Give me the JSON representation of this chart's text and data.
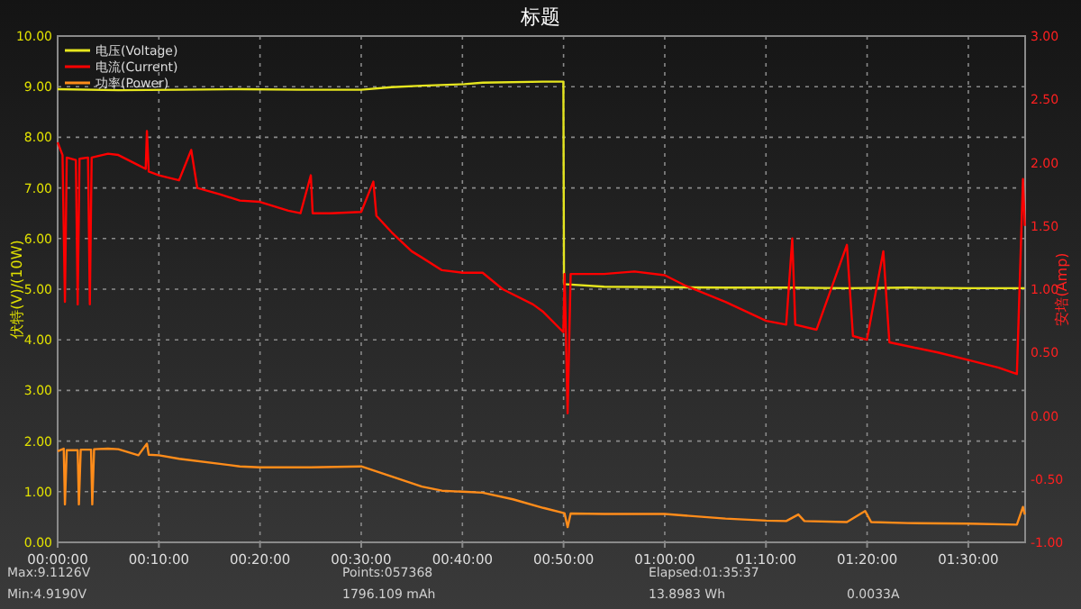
{
  "chart_data": {
    "type": "line",
    "title": "标题",
    "ylabel": "伏特(V)/(10W)",
    "y2label": "安培(Amp)",
    "xlim": [
      0,
      1.5936
    ],
    "xticks": [
      {
        "value": 0,
        "label": "00:00:00"
      },
      {
        "value": 0.1667,
        "label": "00:10:00"
      },
      {
        "value": 0.3333,
        "label": "00:20:00"
      },
      {
        "value": 0.5,
        "label": "00:30:00"
      },
      {
        "value": 0.6667,
        "label": "00:40:00"
      },
      {
        "value": 0.8333,
        "label": "00:50:00"
      },
      {
        "value": 1,
        "label": "01:00:00"
      },
      {
        "value": 1.1667,
        "label": "01:10:00"
      },
      {
        "value": 1.3333,
        "label": "01:20:00"
      },
      {
        "value": 1.5,
        "label": "01:30:00"
      }
    ],
    "ylim": [
      0,
      10
    ],
    "yticks": [
      {
        "value": 0,
        "label": "0.00"
      },
      {
        "value": 1,
        "label": "1.00"
      },
      {
        "value": 2,
        "label": "2.00"
      },
      {
        "value": 3,
        "label": "3.00"
      },
      {
        "value": 4,
        "label": "4.00"
      },
      {
        "value": 5,
        "label": "5.00"
      },
      {
        "value": 6,
        "label": "6.00"
      },
      {
        "value": 7,
        "label": "7.00"
      },
      {
        "value": 8,
        "label": "8.00"
      },
      {
        "value": 9,
        "label": "9.00"
      },
      {
        "value": 10,
        "label": "10.00"
      }
    ],
    "y2lim": [
      -1,
      3
    ],
    "y2ticks": [
      {
        "value": -1,
        "label": "-1.00"
      },
      {
        "value": -0.5,
        "label": "-0.50"
      },
      {
        "value": 0,
        "label": "0.00"
      },
      {
        "value": 0.5,
        "label": "0.50"
      },
      {
        "value": 1,
        "label": "1.00"
      },
      {
        "value": 1.5,
        "label": "1.50"
      },
      {
        "value": 2,
        "label": "2.00"
      },
      {
        "value": 2.5,
        "label": "2.50"
      },
      {
        "value": 3,
        "label": "3.00"
      }
    ],
    "grid": true,
    "legend": "top left",
    "line_style": "solid",
    "marker": "none",
    "series": [
      {
        "name": "电压(Voltage)",
        "color": "#e6e61e",
        "x": [
          0,
          0.1,
          0.2,
          0.3,
          0.4,
          0.5,
          0.55,
          0.6,
          0.67,
          0.7,
          0.8,
          0.833,
          0.834,
          0.9,
          1.0,
          1.1,
          1.2,
          1.3,
          1.4,
          1.5,
          1.593
        ],
        "values": [
          8.95,
          8.93,
          8.94,
          8.95,
          8.94,
          8.94,
          8.99,
          9.02,
          9.05,
          9.08,
          9.1,
          9.1,
          5.1,
          5.05,
          5.04,
          5.03,
          5.03,
          5.02,
          5.03,
          5.02,
          5.02
        ]
      },
      {
        "name": "电流(Current)",
        "color": "#ff0000",
        "axis": "y2",
        "x": [
          0,
          0.008,
          0.012,
          0.015,
          0.03,
          0.033,
          0.036,
          0.05,
          0.053,
          0.056,
          0.083,
          0.1,
          0.133,
          0.145,
          0.147,
          0.15,
          0.167,
          0.2,
          0.22,
          0.23,
          0.267,
          0.3,
          0.333,
          0.38,
          0.4,
          0.417,
          0.42,
          0.45,
          0.5,
          0.52,
          0.525,
          0.55,
          0.583,
          0.6,
          0.633,
          0.667,
          0.7,
          0.733,
          0.783,
          0.8,
          0.833,
          0.835,
          0.84,
          0.845,
          0.9,
          0.95,
          1.0,
          1.033,
          1.1,
          1.167,
          1.2,
          1.21,
          1.215,
          1.25,
          1.3,
          1.31,
          1.333,
          1.36,
          1.37,
          1.4,
          1.45,
          1.5,
          1.55,
          1.58,
          1.59,
          1.593
        ],
        "values": [
          2.16,
          2.06,
          0.9,
          2.04,
          2.02,
          0.88,
          2.03,
          2.04,
          0.88,
          2.04,
          2.07,
          2.06,
          1.98,
          1.95,
          2.25,
          1.93,
          1.9,
          1.86,
          2.1,
          1.8,
          1.75,
          1.7,
          1.69,
          1.62,
          1.6,
          1.9,
          1.6,
          1.6,
          1.61,
          1.85,
          1.58,
          1.45,
          1.3,
          1.25,
          1.15,
          1.13,
          1.13,
          1.0,
          0.88,
          0.82,
          0.66,
          1.12,
          0.02,
          1.12,
          1.12,
          1.14,
          1.11,
          1.03,
          0.9,
          0.75,
          0.72,
          1.4,
          0.72,
          0.68,
          1.35,
          0.63,
          0.6,
          1.3,
          0.58,
          0.55,
          0.5,
          0.44,
          0.38,
          0.33,
          1.87,
          1.5
        ]
      },
      {
        "name": "功率(Power)",
        "color": "#ff8c1a",
        "x": [
          0,
          0.01,
          0.012,
          0.015,
          0.033,
          0.035,
          0.038,
          0.055,
          0.057,
          0.06,
          0.083,
          0.1,
          0.133,
          0.147,
          0.15,
          0.167,
          0.2,
          0.267,
          0.3,
          0.333,
          0.417,
          0.5,
          0.55,
          0.6,
          0.633,
          0.667,
          0.7,
          0.75,
          0.8,
          0.833,
          0.835,
          0.84,
          0.845,
          0.9,
          1.0,
          1.033,
          1.1,
          1.167,
          1.2,
          1.22,
          1.23,
          1.3,
          1.33,
          1.34,
          1.4,
          1.5,
          1.58,
          1.59,
          1.593
        ],
        "values": [
          1.8,
          1.85,
          0.75,
          1.82,
          1.82,
          0.75,
          1.83,
          1.83,
          0.75,
          1.84,
          1.85,
          1.84,
          1.72,
          1.95,
          1.73,
          1.72,
          1.65,
          1.55,
          1.5,
          1.48,
          1.48,
          1.5,
          1.3,
          1.1,
          1.02,
          1.0,
          0.98,
          0.85,
          0.68,
          0.58,
          0.57,
          0.3,
          0.57,
          0.56,
          0.56,
          0.53,
          0.47,
          0.43,
          0.42,
          0.55,
          0.42,
          0.4,
          0.62,
          0.4,
          0.38,
          0.37,
          0.35,
          0.7,
          0.55
        ]
      }
    ],
    "annotations": [
      "Max:9.1126V",
      "Min:4.9190V",
      "Points:057368",
      "1796.109 mAh",
      "Elapsed:01:35:37",
      "13.8983 Wh",
      "0.0033A"
    ]
  }
}
